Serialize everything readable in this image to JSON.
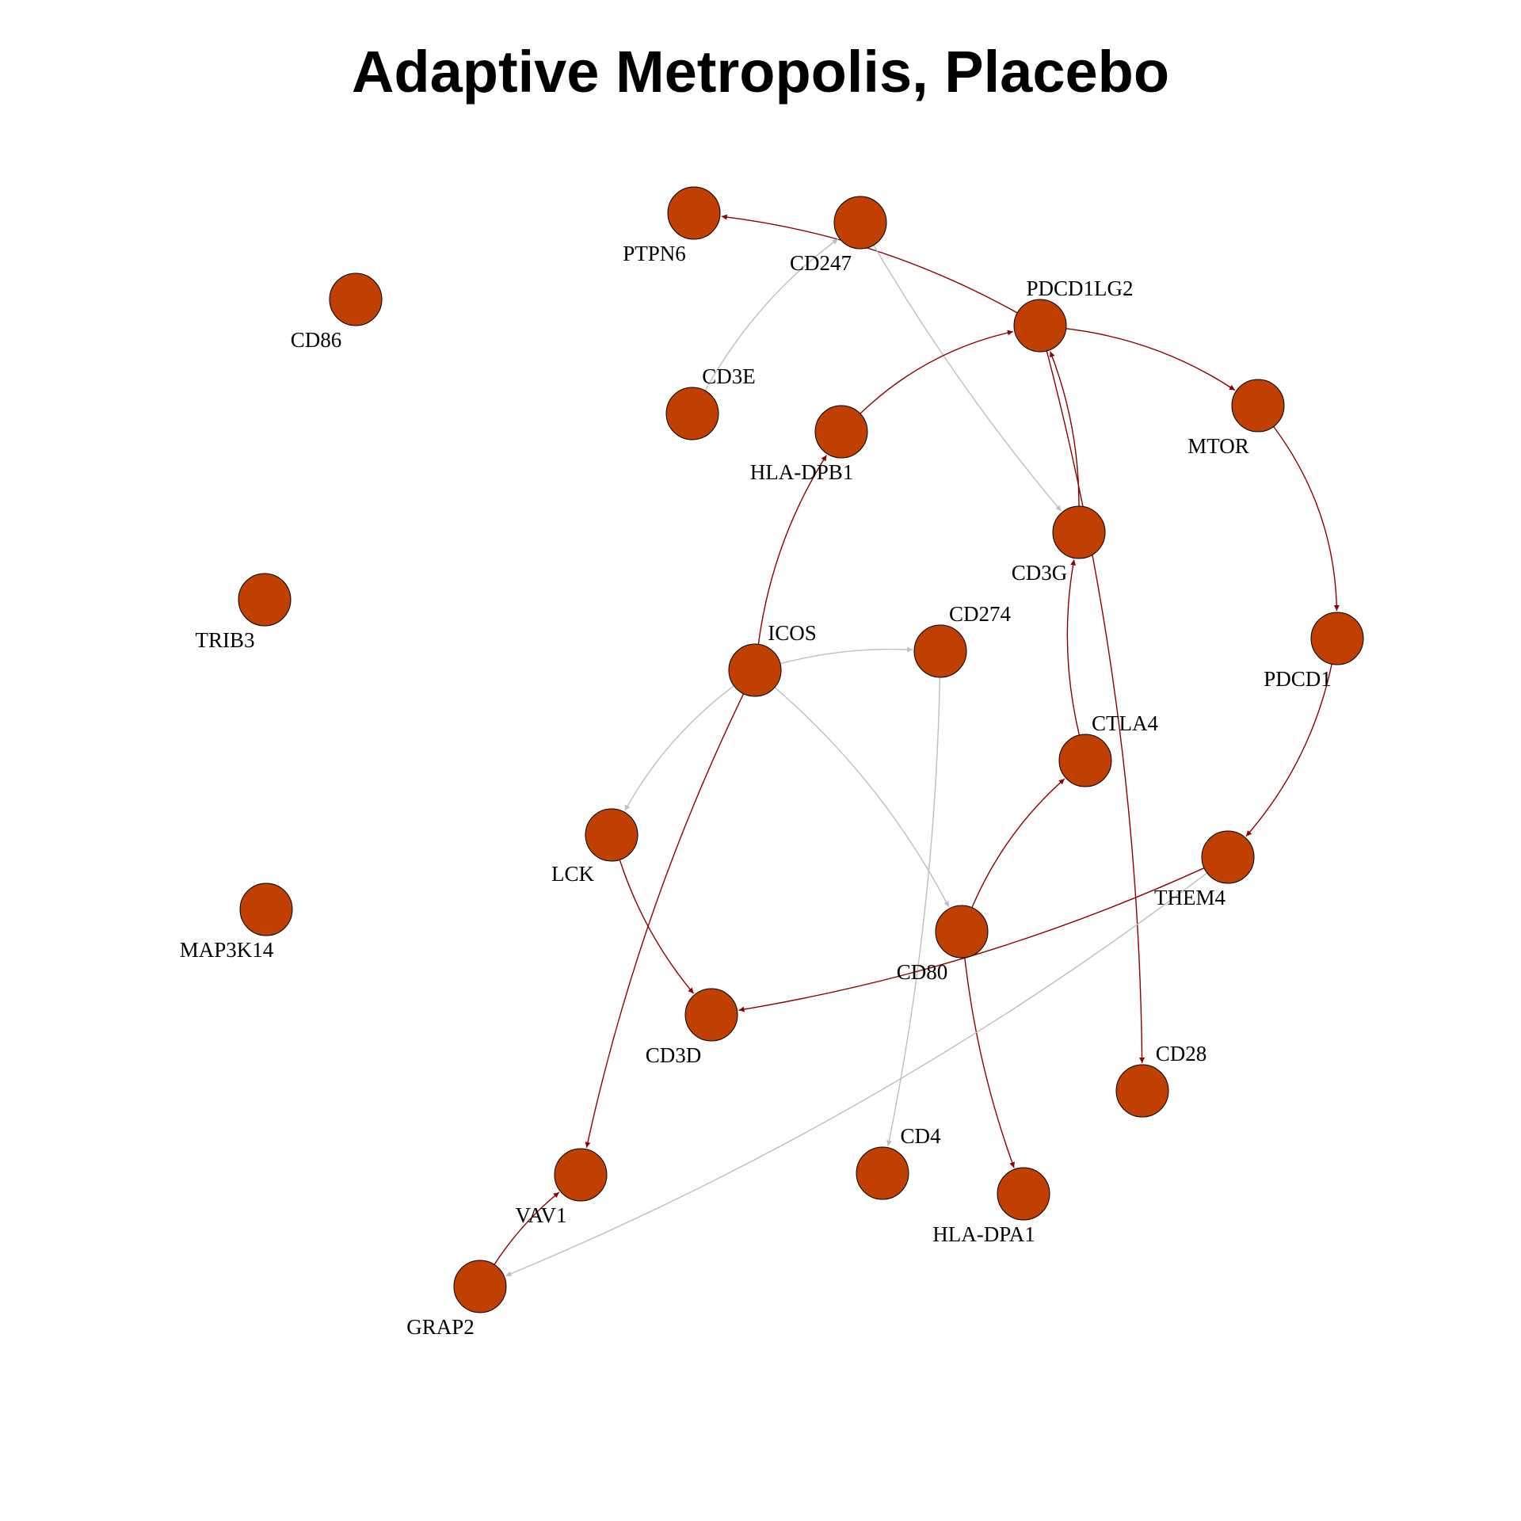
{
  "title": "Adaptive Metropolis, Placebo",
  "colors": {
    "node_fill": "#bf4000",
    "node_stroke": "#000000",
    "edge_positive": "#8b0000",
    "edge_neutral": "#bebebe"
  },
  "nodes": [
    {
      "id": "PTPN6",
      "label": "PTPN6"
    },
    {
      "id": "CD247",
      "label": "CD247"
    },
    {
      "id": "CD86",
      "label": "CD86"
    },
    {
      "id": "PDCD1LG2",
      "label": "PDCD1LG2"
    },
    {
      "id": "CD3E",
      "label": "CD3E"
    },
    {
      "id": "HLA-DPB1",
      "label": "HLA-DPB1"
    },
    {
      "id": "MTOR",
      "label": "MTOR"
    },
    {
      "id": "CD3G",
      "label": "CD3G"
    },
    {
      "id": "TRIB3",
      "label": "TRIB3"
    },
    {
      "id": "PDCD1",
      "label": "PDCD1"
    },
    {
      "id": "ICOS",
      "label": "ICOS"
    },
    {
      "id": "CD274",
      "label": "CD274"
    },
    {
      "id": "CTLA4",
      "label": "CTLA4"
    },
    {
      "id": "LCK",
      "label": "LCK"
    },
    {
      "id": "THEM4",
      "label": "THEM4"
    },
    {
      "id": "MAP3K14",
      "label": "MAP3K14"
    },
    {
      "id": "CD80",
      "label": "CD80"
    },
    {
      "id": "CD3D",
      "label": "CD3D"
    },
    {
      "id": "CD28",
      "label": "CD28"
    },
    {
      "id": "CD4",
      "label": "CD4"
    },
    {
      "id": "VAV1",
      "label": "VAV1"
    },
    {
      "id": "HLA-DPA1",
      "label": "HLA-DPA1"
    },
    {
      "id": "GRAP2",
      "label": "GRAP2"
    }
  ],
  "edges": [
    {
      "from": "PDCD1LG2",
      "to": "PTPN6",
      "kind": "positive"
    },
    {
      "from": "CD3E",
      "to": "CD247",
      "kind": "neutral"
    },
    {
      "from": "CD247",
      "to": "CD3G",
      "kind": "neutral"
    },
    {
      "from": "HLA-DPB1",
      "to": "PDCD1LG2",
      "kind": "positive"
    },
    {
      "from": "PDCD1LG2",
      "to": "MTOR",
      "kind": "positive"
    },
    {
      "from": "CD3G",
      "to": "PDCD1LG2",
      "kind": "positive"
    },
    {
      "from": "PDCD1LG2",
      "to": "CD28",
      "kind": "positive"
    },
    {
      "from": "MTOR",
      "to": "PDCD1",
      "kind": "positive"
    },
    {
      "from": "PDCD1",
      "to": "THEM4",
      "kind": "positive"
    },
    {
      "from": "ICOS",
      "to": "HLA-DPB1",
      "kind": "positive"
    },
    {
      "from": "ICOS",
      "to": "CD274",
      "kind": "neutral"
    },
    {
      "from": "ICOS",
      "to": "LCK",
      "kind": "neutral"
    },
    {
      "from": "ICOS",
      "to": "CD80",
      "kind": "neutral"
    },
    {
      "from": "ICOS",
      "to": "VAV1",
      "kind": "positive"
    },
    {
      "from": "CD274",
      "to": "CD4",
      "kind": "neutral"
    },
    {
      "from": "CTLA4",
      "to": "CD3G",
      "kind": "positive"
    },
    {
      "from": "CD80",
      "to": "CTLA4",
      "kind": "positive"
    },
    {
      "from": "CD80",
      "to": "HLA-DPA1",
      "kind": "positive"
    },
    {
      "from": "LCK",
      "to": "CD3D",
      "kind": "positive"
    },
    {
      "from": "THEM4",
      "to": "CD3D",
      "kind": "positive"
    },
    {
      "from": "THEM4",
      "to": "GRAP2",
      "kind": "neutral"
    },
    {
      "from": "GRAP2",
      "to": "VAV1",
      "kind": "positive"
    }
  ]
}
